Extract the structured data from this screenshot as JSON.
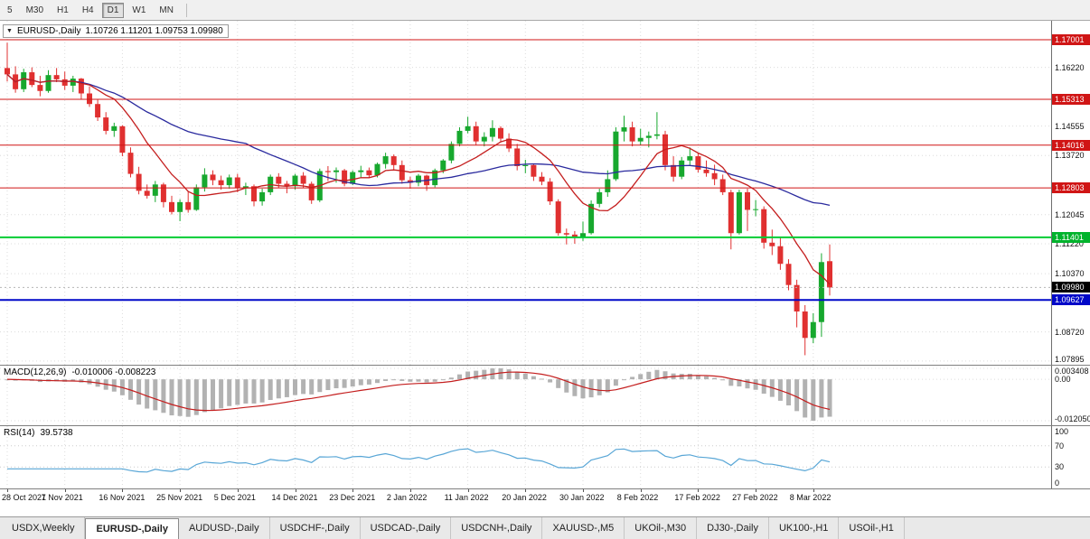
{
  "toolbar": {
    "timeframes": [
      {
        "label": "5",
        "active": false
      },
      {
        "label": "M30",
        "active": false
      },
      {
        "label": "H1",
        "active": false
      },
      {
        "label": "H4",
        "active": false
      },
      {
        "label": "D1",
        "active": true
      },
      {
        "label": "W1",
        "active": false
      },
      {
        "label": "MN",
        "active": false
      }
    ]
  },
  "symbol_header": {
    "symbol": "EURUSD-,Daily",
    "ohlc": "1.10726 1.11201 1.09753 1.09980"
  },
  "tabs": [
    {
      "label": "USDX,Weekly",
      "active": false
    },
    {
      "label": "EURUSD-,Daily",
      "active": true
    },
    {
      "label": "AUDUSD-,Daily",
      "active": false
    },
    {
      "label": "USDCHF-,Daily",
      "active": false
    },
    {
      "label": "USDCAD-,Daily",
      "active": false
    },
    {
      "label": "USDCNH-,Daily",
      "active": false
    },
    {
      "label": "XAUUSD-,M5",
      "active": false
    },
    {
      "label": "UKOil-,M30",
      "active": false
    },
    {
      "label": "DJ30-,Daily",
      "active": false
    },
    {
      "label": "UK100-,H1",
      "active": false
    },
    {
      "label": "USOil-,H1",
      "active": false
    }
  ],
  "chart_data": [
    {
      "type": "candlestick",
      "title": "EURUSD- Daily",
      "ylim": [
        1.0779,
        1.1754
      ],
      "x_label_step": 7,
      "x_labels": [
        "28 Oct 2021",
        "7 Nov 2021",
        "16 Nov 2021",
        "25 Nov 2021",
        "5 Dec 2021",
        "14 Dec 2021",
        "23 Dec 2021",
        "2 Jan 2022",
        "11 Jan 2022",
        "20 Jan 2022",
        "30 Jan 2022",
        "8 Feb 2022",
        "17 Feb 2022",
        "27 Feb 2022",
        "8 Mar 2022"
      ],
      "y_ticks": [
        "1.16220",
        "1.14555",
        "1.13720",
        "1.12045",
        "1.11220",
        "1.10370",
        "1.08720",
        "1.07895"
      ],
      "hlines": [
        {
          "price": "1.17001",
          "color": "#d01515",
          "width": 1,
          "badge": "#d01515"
        },
        {
          "price": "1.15313",
          "color": "#d01515",
          "width": 1,
          "badge": "#d01515"
        },
        {
          "price": "1.14016",
          "color": "#d01515",
          "width": 1,
          "badge": "#d01515"
        },
        {
          "price": "1.12803",
          "color": "#d01515",
          "width": 1,
          "badge": "#d01515"
        },
        {
          "price": "1.11401",
          "color": "#00cc33",
          "width": 2,
          "badge": "#00b32c"
        },
        {
          "price": "1.09627",
          "color": "#0008c8",
          "width": 2,
          "badge": "#0008c8"
        }
      ],
      "current_price": {
        "value": "1.09980",
        "badge": "#000000"
      },
      "colors": {
        "up": "#17a82e",
        "down": "#e03030"
      },
      "overlays": [
        {
          "name": "ma-slow",
          "type": "sma",
          "period": 30,
          "color": "#2a2a9e"
        },
        {
          "name": "ma-fast",
          "type": "sma",
          "period": 9,
          "color": "#c41e1e"
        }
      ],
      "candles": [
        [
          1.162,
          1.1692,
          1.1582,
          1.1602
        ],
        [
          1.1602,
          1.1625,
          1.155,
          1.156
        ],
        [
          1.156,
          1.1618,
          1.1552,
          1.1608
        ],
        [
          1.1608,
          1.1622,
          1.1566,
          1.1572
        ],
        [
          1.1572,
          1.1598,
          1.154,
          1.1555
        ],
        [
          1.1555,
          1.1614,
          1.155,
          1.16
        ],
        [
          1.16,
          1.162,
          1.158,
          1.1588
        ],
        [
          1.1588,
          1.161,
          1.1558,
          1.157
        ],
        [
          1.157,
          1.1598,
          1.1552,
          1.159
        ],
        [
          1.159,
          1.1592,
          1.153,
          1.1548
        ],
        [
          1.1548,
          1.1568,
          1.151,
          1.1518
        ],
        [
          1.1518,
          1.153,
          1.147,
          1.148
        ],
        [
          1.148,
          1.1495,
          1.1432,
          1.1442
        ],
        [
          1.1442,
          1.1465,
          1.1425,
          1.1455
        ],
        [
          1.1455,
          1.1458,
          1.137,
          1.138
        ],
        [
          1.138,
          1.1395,
          1.131,
          1.132
        ],
        [
          1.132,
          1.134,
          1.1262,
          1.1272
        ],
        [
          1.1272,
          1.129,
          1.125,
          1.1258
        ],
        [
          1.1258,
          1.13,
          1.124,
          1.129
        ],
        [
          1.129,
          1.1295,
          1.1225,
          1.124
        ],
        [
          1.124,
          1.1258,
          1.1205,
          1.1212
        ],
        [
          1.1212,
          1.1248,
          1.1186,
          1.124
        ],
        [
          1.124,
          1.127,
          1.121,
          1.1218
        ],
        [
          1.1218,
          1.129,
          1.1215,
          1.1282
        ],
        [
          1.1282,
          1.1336,
          1.127,
          1.1318
        ],
        [
          1.1318,
          1.133,
          1.1288,
          1.1302
        ],
        [
          1.1302,
          1.1315,
          1.1275,
          1.1288
        ],
        [
          1.1288,
          1.1318,
          1.1278,
          1.131
        ],
        [
          1.131,
          1.132,
          1.1268,
          1.128
        ],
        [
          1.128,
          1.1295,
          1.126,
          1.1285
        ],
        [
          1.1285,
          1.129,
          1.1228,
          1.1242
        ],
        [
          1.1242,
          1.1278,
          1.123,
          1.1268
        ],
        [
          1.1268,
          1.1318,
          1.126,
          1.1312
        ],
        [
          1.1312,
          1.1322,
          1.128,
          1.1292
        ],
        [
          1.1292,
          1.13,
          1.1265,
          1.1285
        ],
        [
          1.1285,
          1.132,
          1.1275,
          1.1315
        ],
        [
          1.1315,
          1.1325,
          1.128,
          1.1292
        ],
        [
          1.1292,
          1.1298,
          1.1235,
          1.1245
        ],
        [
          1.1245,
          1.1335,
          1.124,
          1.1328
        ],
        [
          1.1328,
          1.1342,
          1.13,
          1.1325
        ],
        [
          1.1325,
          1.1338,
          1.1295,
          1.133
        ],
        [
          1.133,
          1.1334,
          1.1285,
          1.1292
        ],
        [
          1.1292,
          1.133,
          1.1288,
          1.1325
        ],
        [
          1.1325,
          1.1343,
          1.1308,
          1.133
        ],
        [
          1.133,
          1.1338,
          1.1308,
          1.1316
        ],
        [
          1.1316,
          1.1352,
          1.131,
          1.1348
        ],
        [
          1.1348,
          1.138,
          1.1335,
          1.137
        ],
        [
          1.137,
          1.1375,
          1.1332,
          1.1345
        ],
        [
          1.1345,
          1.1358,
          1.1292,
          1.1302
        ],
        [
          1.1302,
          1.1312,
          1.1278,
          1.1295
        ],
        [
          1.1295,
          1.132,
          1.1285,
          1.1315
        ],
        [
          1.1315,
          1.1318,
          1.1272,
          1.1288
        ],
        [
          1.1288,
          1.1335,
          1.1282,
          1.133
        ],
        [
          1.133,
          1.1362,
          1.1322,
          1.1358
        ],
        [
          1.1358,
          1.1412,
          1.135,
          1.1405
        ],
        [
          1.1405,
          1.1452,
          1.1398,
          1.1442
        ],
        [
          1.1442,
          1.1482,
          1.1435,
          1.1455
        ],
        [
          1.1455,
          1.1468,
          1.1402,
          1.1412
        ],
        [
          1.1412,
          1.1438,
          1.1398,
          1.1425
        ],
        [
          1.1425,
          1.1472,
          1.1412,
          1.145
        ],
        [
          1.145,
          1.1455,
          1.141,
          1.142
        ],
        [
          1.142,
          1.1435,
          1.1382,
          1.1392
        ],
        [
          1.1392,
          1.1405,
          1.133,
          1.1342
        ],
        [
          1.1342,
          1.136,
          1.1322,
          1.1345
        ],
        [
          1.1345,
          1.1348,
          1.13,
          1.1312
        ],
        [
          1.1312,
          1.1325,
          1.1288,
          1.1298
        ],
        [
          1.1298,
          1.1308,
          1.1232,
          1.1242
        ],
        [
          1.1242,
          1.1248,
          1.1145,
          1.1152
        ],
        [
          1.1152,
          1.1165,
          1.112,
          1.1148
        ],
        [
          1.1148,
          1.1158,
          1.1122,
          1.114
        ],
        [
          1.114,
          1.1185,
          1.113,
          1.1152
        ],
        [
          1.1152,
          1.1245,
          1.1148,
          1.1235
        ],
        [
          1.1235,
          1.1278,
          1.1225,
          1.1268
        ],
        [
          1.1268,
          1.133,
          1.1255,
          1.1305
        ],
        [
          1.1305,
          1.1452,
          1.13,
          1.144
        ],
        [
          1.144,
          1.1485,
          1.1412,
          1.1452
        ],
        [
          1.1452,
          1.1468,
          1.1398,
          1.1412
        ],
        [
          1.1412,
          1.1448,
          1.1402,
          1.1422
        ],
        [
          1.1422,
          1.144,
          1.1395,
          1.1428
        ],
        [
          1.1428,
          1.1495,
          1.1418,
          1.1432
        ],
        [
          1.1432,
          1.1442,
          1.133,
          1.1345
        ],
        [
          1.1345,
          1.137,
          1.1298,
          1.1312
        ],
        [
          1.1312,
          1.1368,
          1.1305,
          1.1358
        ],
        [
          1.1358,
          1.1395,
          1.1345,
          1.137
        ],
        [
          1.137,
          1.138,
          1.1324,
          1.1332
        ],
        [
          1.1332,
          1.1358,
          1.1312,
          1.1322
        ],
        [
          1.1322,
          1.1346,
          1.1288,
          1.1305
        ],
        [
          1.1305,
          1.1318,
          1.126,
          1.1268
        ],
        [
          1.1268,
          1.1275,
          1.1106,
          1.1152
        ],
        [
          1.1152,
          1.1275,
          1.1148,
          1.1268
        ],
        [
          1.1268,
          1.1278,
          1.1158,
          1.1218
        ],
        [
          1.1218,
          1.1246,
          1.12,
          1.122
        ],
        [
          1.122,
          1.1228,
          1.1108,
          1.1125
        ],
        [
          1.1125,
          1.1162,
          1.109,
          1.1115
        ],
        [
          1.1115,
          1.114,
          1.1048,
          1.1065
        ],
        [
          1.1065,
          1.1078,
          1.099,
          1.1005
        ],
        [
          1.1005,
          1.102,
          1.0885,
          1.093
        ],
        [
          1.093,
          1.0948,
          1.0806,
          1.0855
        ],
        [
          1.0855,
          1.0925,
          1.084,
          1.09
        ],
        [
          1.09,
          1.1095,
          1.0858,
          1.107
        ],
        [
          1.10726,
          1.11201,
          1.09753,
          1.0998
        ]
      ]
    },
    {
      "type": "macd",
      "label": "MACD(12,26,9)",
      "current_values": "-0.010006 -0.008223",
      "fast": 12,
      "slow": 26,
      "signal": 9,
      "y_ticks": [
        "0.003408",
        "0.00",
        "-0.012050"
      ],
      "histogram_color": "#b2b2b2",
      "signal_color": "#c41e1e"
    },
    {
      "type": "rsi",
      "label": "RSI(14)",
      "current_value": "39.5738",
      "period": 14,
      "levels": [
        70,
        30
      ],
      "ylim": [
        0,
        100
      ],
      "y_ticks": [
        "100",
        "70",
        "30",
        "0"
      ],
      "line_color": "#58a6d6"
    }
  ]
}
